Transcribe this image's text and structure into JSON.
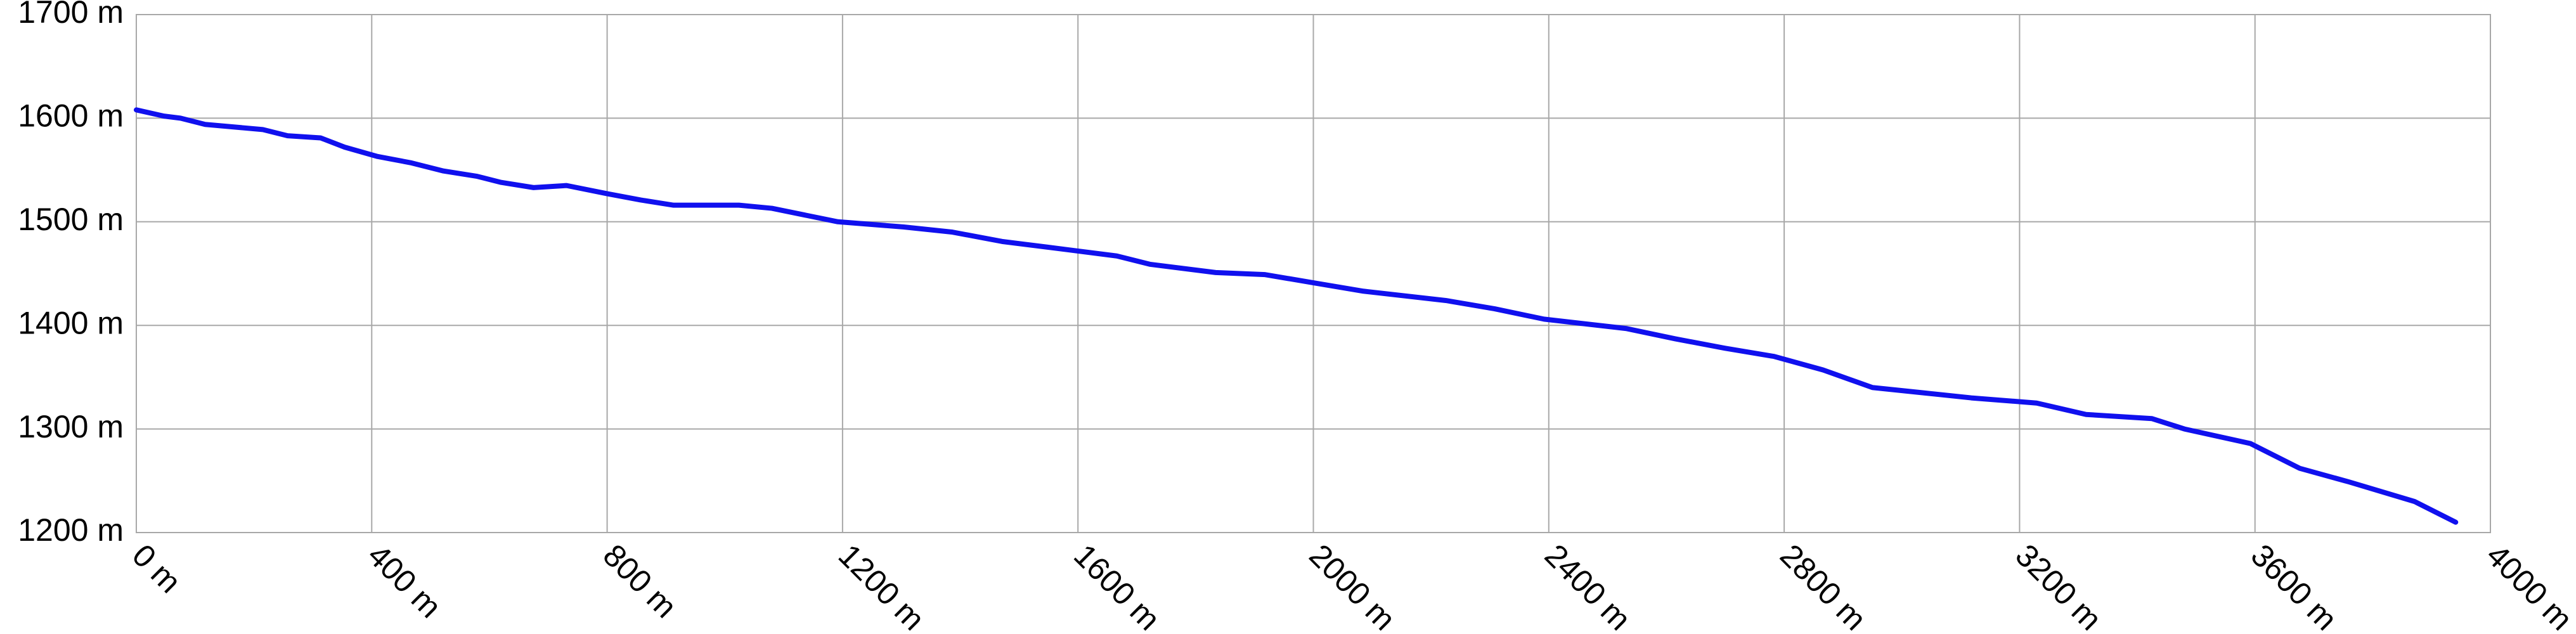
{
  "chart_data": {
    "type": "line",
    "x": [
      0,
      47,
      75,
      117,
      215,
      257,
      313,
      354,
      410,
      466,
      522,
      578,
      620,
      675,
      731,
      801,
      857,
      913,
      1024,
      1080,
      1192,
      1304,
      1387,
      1471,
      1583,
      1666,
      1722,
      1834,
      1918,
      2001,
      2085,
      2225,
      2308,
      2392,
      2531,
      2615,
      2699,
      2783,
      2866,
      2950,
      3034,
      3118,
      3229,
      3313,
      3425,
      3480,
      3592,
      3676,
      3759,
      3871,
      3941
    ],
    "values": [
      1608,
      1602,
      1600,
      1594,
      1589,
      1583,
      1581,
      1572,
      1563,
      1557,
      1549,
      1544,
      1538,
      1533,
      1535,
      1527,
      1521,
      1516,
      1516,
      1513,
      1500,
      1495,
      1490,
      1481,
      1473,
      1467,
      1459,
      1451,
      1449,
      1441,
      1433,
      1424,
      1416,
      1406,
      1397,
      1387,
      1378,
      1370,
      1357,
      1340,
      1335,
      1330,
      1325,
      1314,
      1310,
      1300,
      1286,
      1262,
      1249,
      1230,
      1210
    ],
    "color": "#1010ee",
    "xlim": [
      0,
      4000
    ],
    "xticks": [
      {
        "value": 0,
        "label": "0 m"
      },
      {
        "value": 400,
        "label": "400 m"
      },
      {
        "value": 800,
        "label": "800 m"
      },
      {
        "value": 1200,
        "label": "1200 m"
      },
      {
        "value": 1600,
        "label": "1600 m"
      },
      {
        "value": 2000,
        "label": "2000 m"
      },
      {
        "value": 2400,
        "label": "2400 m"
      },
      {
        "value": 2800,
        "label": "2800 m"
      },
      {
        "value": 3200,
        "label": "3200 m"
      },
      {
        "value": 3600,
        "label": "3600 m"
      },
      {
        "value": 4000,
        "label": "4000 m"
      }
    ],
    "ylim": [
      1200,
      1700
    ],
    "yticks": [
      {
        "value": 1200,
        "label": "1200 m"
      },
      {
        "value": 1300,
        "label": "1300 m"
      },
      {
        "value": 1400,
        "label": "1400 m"
      },
      {
        "value": 1500,
        "label": "1500 m"
      },
      {
        "value": 1600,
        "label": "1600 m"
      },
      {
        "value": 1700,
        "label": "1700 m"
      }
    ],
    "grid": true
  }
}
